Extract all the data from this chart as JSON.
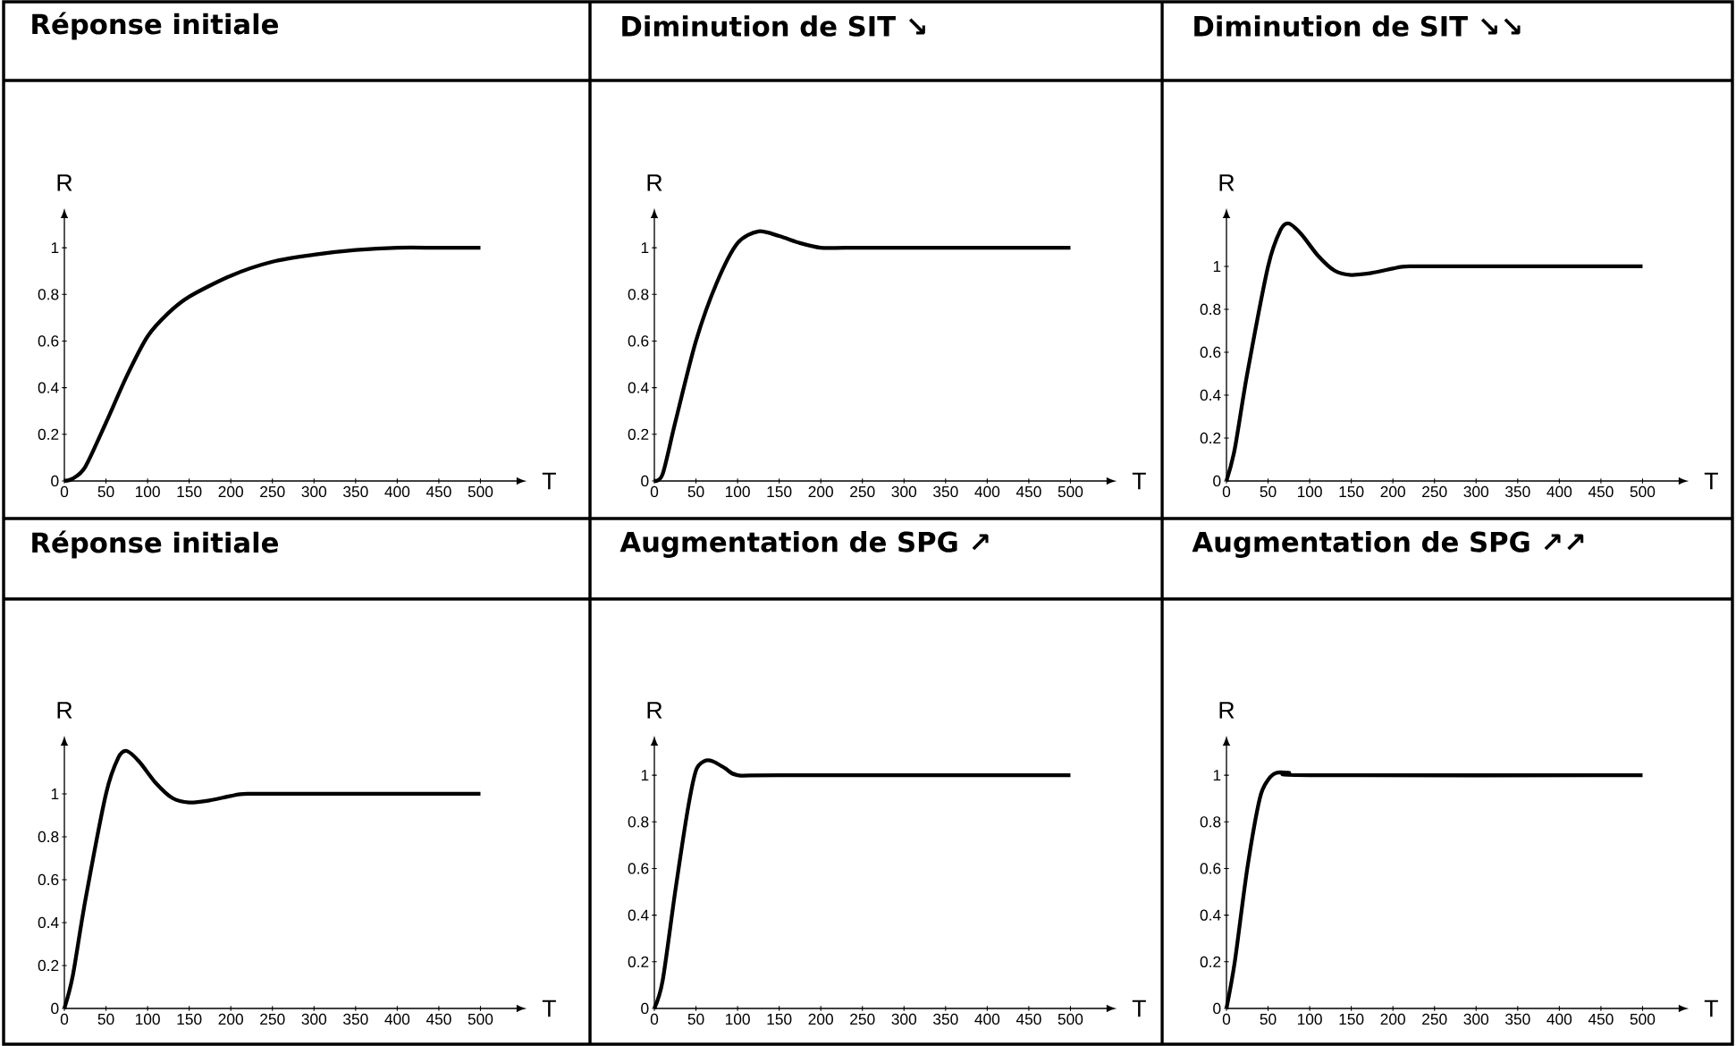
{
  "chart_data": [
    {
      "type": "line",
      "title": "Réponse initiale",
      "xlabel": "T",
      "ylabel": "R",
      "color": "#000000",
      "xlim": [
        0,
        550
      ],
      "ylim": [
        0,
        1.15
      ],
      "xticks": [
        0,
        50,
        100,
        150,
        200,
        250,
        300,
        350,
        400,
        450,
        500
      ],
      "yticks": [
        0,
        0.2,
        0.4,
        0.6,
        0.8,
        1
      ],
      "x": [
        0,
        10,
        25,
        50,
        75,
        100,
        125,
        150,
        200,
        250,
        300,
        350,
        400,
        450,
        500
      ],
      "values": [
        0,
        0.01,
        0.06,
        0.25,
        0.45,
        0.62,
        0.72,
        0.79,
        0.88,
        0.94,
        0.97,
        0.99,
        1.0,
        1.0,
        1.0
      ]
    },
    {
      "type": "line",
      "title": "Diminution de SIT ↘",
      "xlabel": "T",
      "ylabel": "R",
      "color": "#000000",
      "xlim": [
        0,
        550
      ],
      "ylim": [
        0,
        1.15
      ],
      "xticks": [
        0,
        50,
        100,
        150,
        200,
        250,
        300,
        350,
        400,
        450,
        500
      ],
      "yticks": [
        0,
        0.2,
        0.4,
        0.6,
        0.8,
        1
      ],
      "x": [
        0,
        10,
        25,
        50,
        75,
        100,
        125,
        150,
        175,
        200,
        230,
        300,
        500
      ],
      "values": [
        0,
        0.03,
        0.25,
        0.6,
        0.85,
        1.02,
        1.07,
        1.05,
        1.02,
        1.0,
        1.0,
        1.0,
        1.0
      ]
    },
    {
      "type": "line",
      "title": "Diminution de SIT ↘↘",
      "xlabel": "T",
      "ylabel": "R",
      "color": "#000000",
      "xlim": [
        0,
        550
      ],
      "ylim": [
        0,
        1.25
      ],
      "xticks": [
        0,
        50,
        100,
        150,
        200,
        250,
        300,
        350,
        400,
        450,
        500
      ],
      "yticks": [
        0,
        0.2,
        0.4,
        0.6,
        0.8,
        1
      ],
      "x": [
        0,
        10,
        25,
        50,
        65,
        75,
        90,
        110,
        130,
        150,
        175,
        200,
        220,
        300,
        500
      ],
      "values": [
        0,
        0.15,
        0.5,
        1.0,
        1.17,
        1.2,
        1.15,
        1.05,
        0.98,
        0.96,
        0.97,
        0.99,
        1.0,
        1.0,
        1.0
      ]
    },
    {
      "type": "line",
      "title": "Réponse initiale",
      "xlabel": "T",
      "ylabel": "R",
      "color": "#000000",
      "xlim": [
        0,
        550
      ],
      "ylim": [
        0,
        1.25
      ],
      "xticks": [
        0,
        50,
        100,
        150,
        200,
        250,
        300,
        350,
        400,
        450,
        500
      ],
      "yticks": [
        0,
        0.2,
        0.4,
        0.6,
        0.8,
        1
      ],
      "x": [
        0,
        10,
        25,
        50,
        65,
        75,
        90,
        110,
        130,
        150,
        175,
        200,
        220,
        300,
        500
      ],
      "values": [
        0,
        0.15,
        0.5,
        1.0,
        1.17,
        1.2,
        1.15,
        1.05,
        0.98,
        0.96,
        0.97,
        0.99,
        1.0,
        1.0,
        1.0
      ]
    },
    {
      "type": "line",
      "title": "Augmentation de SPG ↗",
      "xlabel": "T",
      "ylabel": "R",
      "color": "#000000",
      "xlim": [
        0,
        550
      ],
      "ylim": [
        0,
        1.15
      ],
      "xticks": [
        0,
        50,
        100,
        150,
        200,
        250,
        300,
        350,
        400,
        450,
        500
      ],
      "yticks": [
        0,
        0.2,
        0.4,
        0.6,
        0.8,
        1
      ],
      "x": [
        0,
        10,
        25,
        40,
        50,
        60,
        70,
        85,
        100,
        150,
        500
      ],
      "values": [
        0,
        0.12,
        0.5,
        0.85,
        1.02,
        1.06,
        1.06,
        1.03,
        1.0,
        1.0,
        1.0
      ]
    },
    {
      "type": "line",
      "title": "Augmentation de SPG ↗↗",
      "xlabel": "T",
      "ylabel": "R",
      "color": "#000000",
      "xlim": [
        0,
        550
      ],
      "ylim": [
        0,
        1.15
      ],
      "xticks": [
        0,
        50,
        100,
        150,
        200,
        250,
        300,
        350,
        400,
        450,
        500
      ],
      "yticks": [
        0,
        0.2,
        0.4,
        0.6,
        0.8,
        1
      ],
      "x": [
        0,
        10,
        25,
        40,
        50,
        60,
        75,
        100,
        500
      ],
      "values": [
        0,
        0.2,
        0.6,
        0.9,
        0.98,
        1.01,
        1.01,
        1.0,
        1.0
      ]
    }
  ]
}
